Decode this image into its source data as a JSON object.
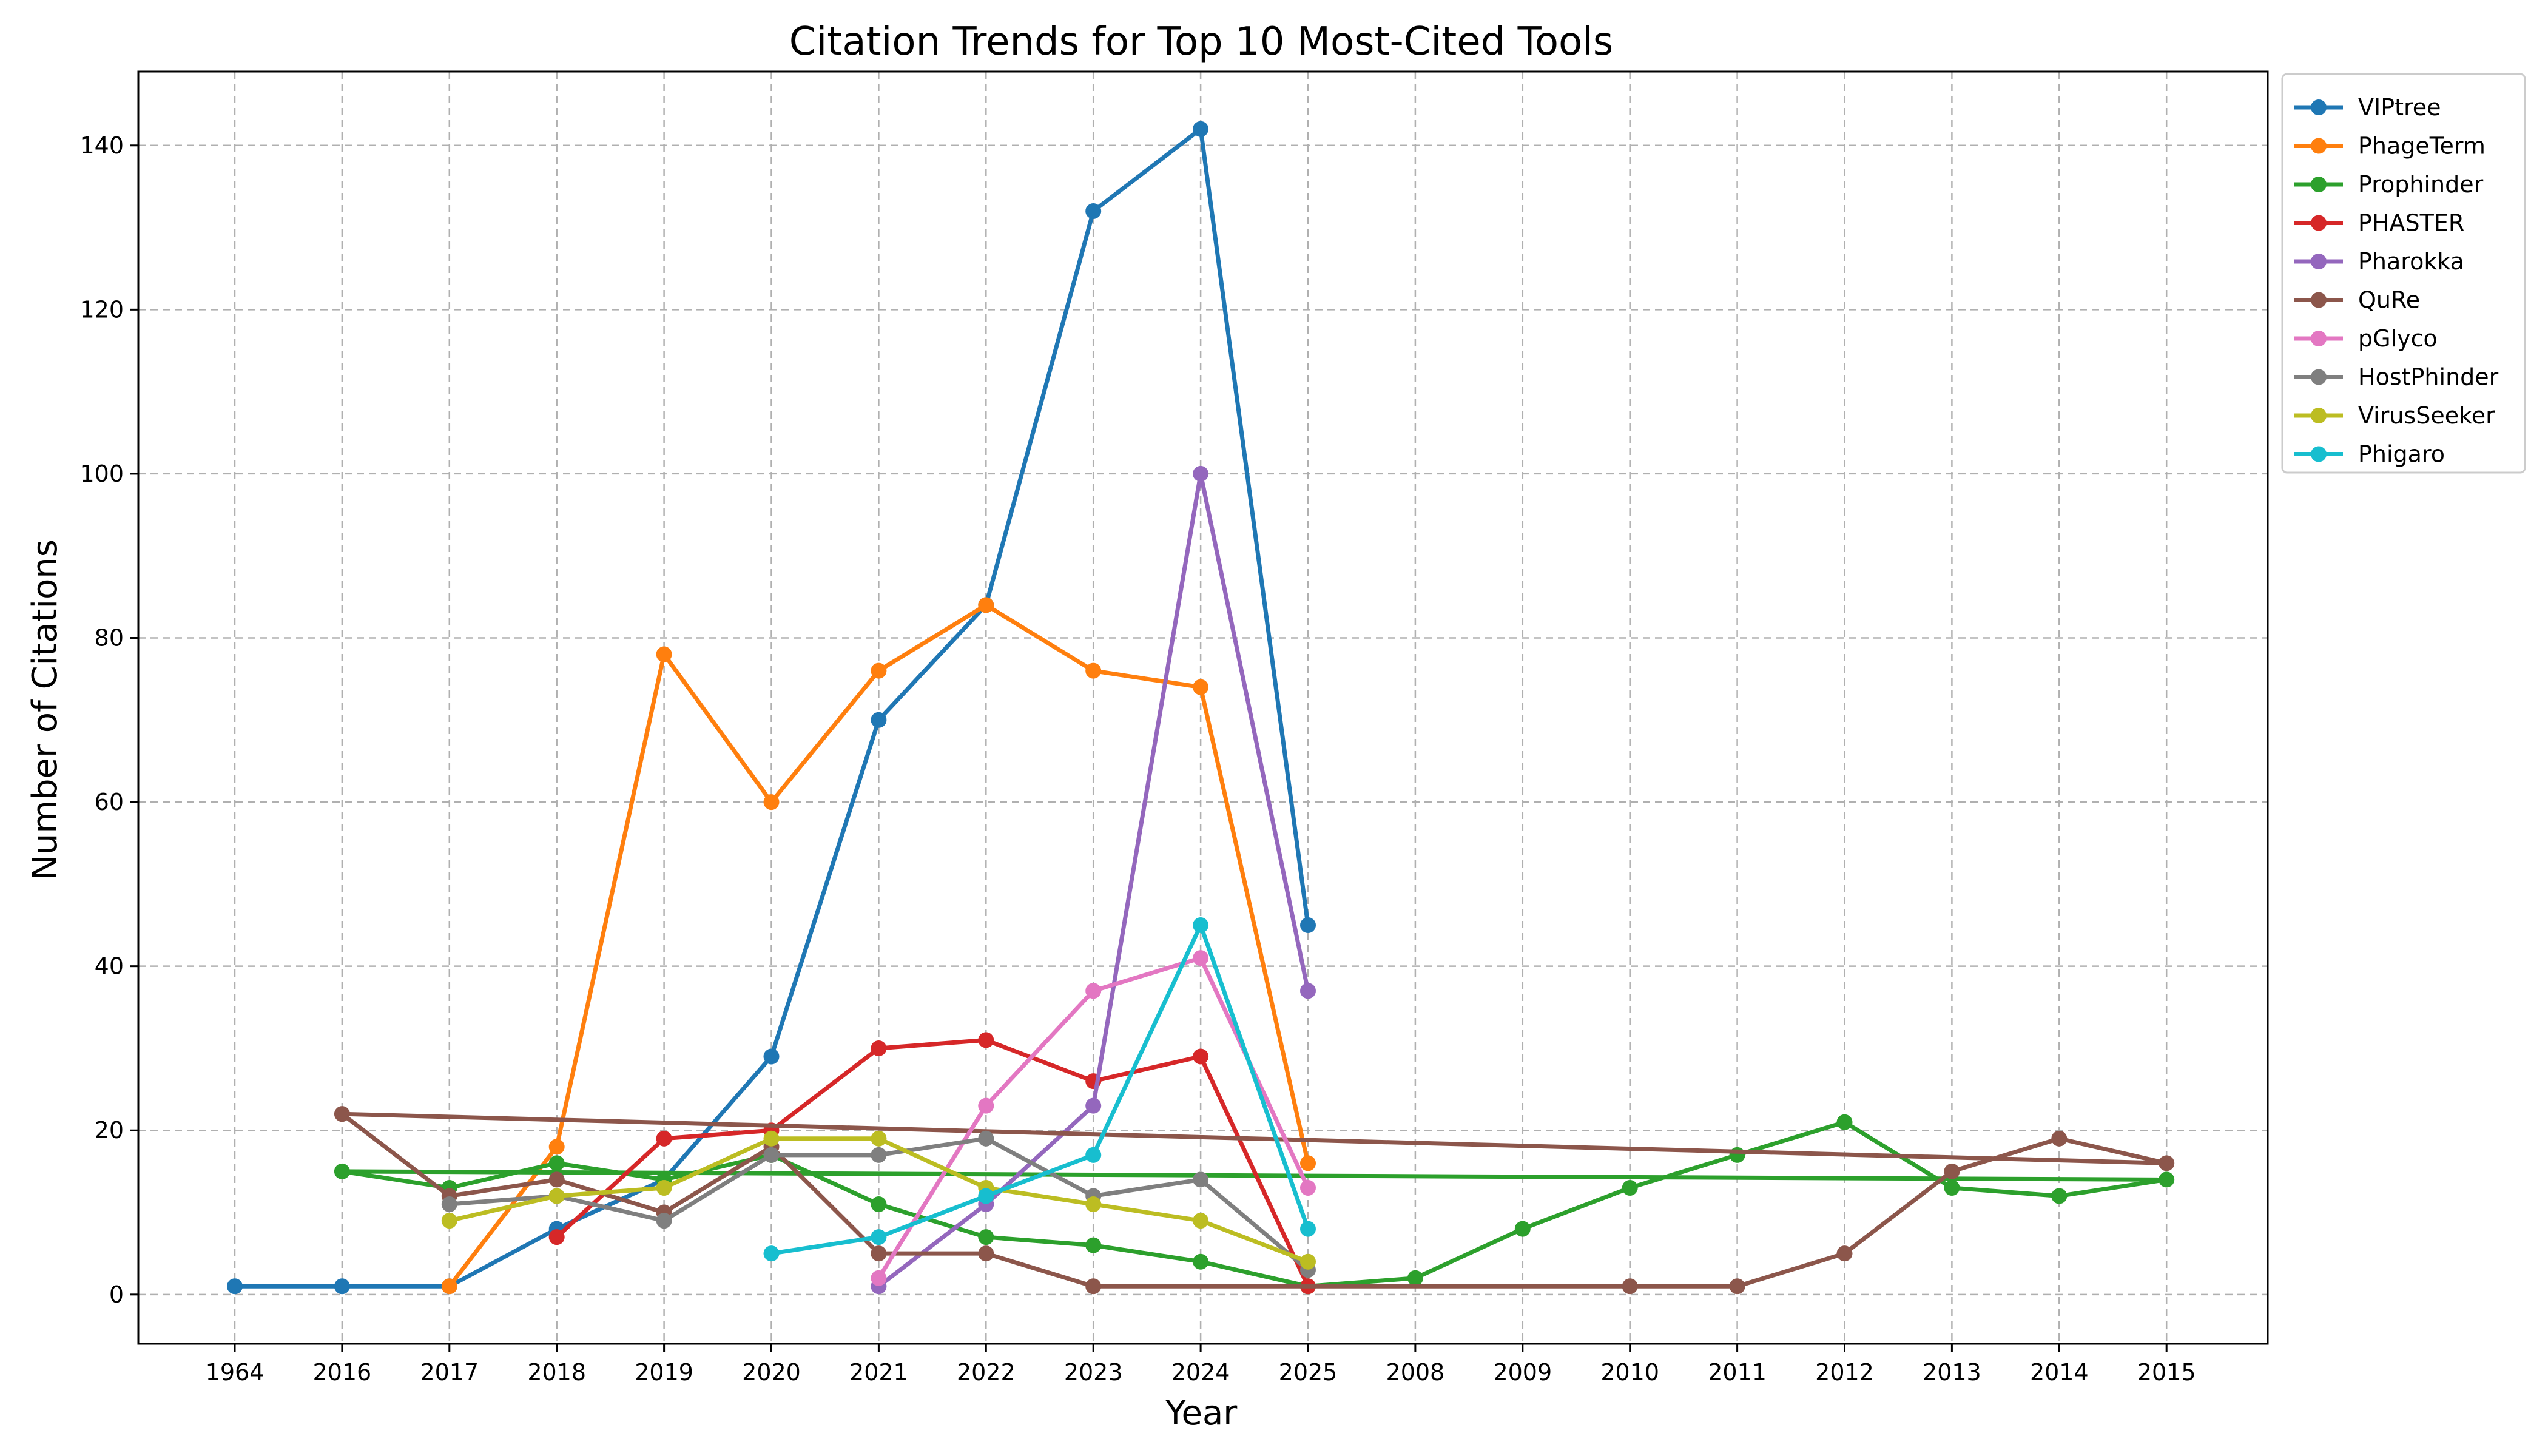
{
  "chart_data": {
    "type": "line",
    "title": "Citation Trends for Top 10 Most-Cited Tools",
    "xlabel": "Year",
    "ylabel": "Number of Citations",
    "categories": [
      "1964",
      "2016",
      "2017",
      "2018",
      "2019",
      "2020",
      "2021",
      "2022",
      "2023",
      "2024",
      "2025",
      "2008",
      "2009",
      "2010",
      "2011",
      "2012",
      "2013",
      "2014",
      "2015"
    ],
    "ylim": [
      -6,
      149
    ],
    "yticks": [
      0,
      20,
      40,
      60,
      80,
      100,
      120,
      140
    ],
    "grid": true,
    "legend_position": "outside-top-right",
    "series": [
      {
        "name": "VIPtree",
        "color": "#1f77b4",
        "points": [
          [
            "1964",
            1
          ],
          [
            "2016",
            1
          ],
          [
            "2017",
            1
          ],
          [
            "2018",
            8
          ],
          [
            "2019",
            14
          ],
          [
            "2020",
            29
          ],
          [
            "2021",
            70
          ],
          [
            "2022",
            84
          ],
          [
            "2023",
            132
          ],
          [
            "2024",
            142
          ],
          [
            "2025",
            45
          ]
        ]
      },
      {
        "name": "PhageTerm",
        "color": "#ff7f0e",
        "points": [
          [
            "2017",
            1
          ],
          [
            "2018",
            18
          ],
          [
            "2019",
            78
          ],
          [
            "2020",
            60
          ],
          [
            "2021",
            76
          ],
          [
            "2022",
            84
          ],
          [
            "2023",
            76
          ],
          [
            "2024",
            74
          ],
          [
            "2025",
            16
          ]
        ]
      },
      {
        "name": "Prophinder",
        "color": "#2ca02c",
        "points": [
          [
            "2016",
            15
          ],
          [
            "2017",
            13
          ],
          [
            "2018",
            16
          ],
          [
            "2019",
            14
          ],
          [
            "2020",
            17
          ],
          [
            "2021",
            11
          ],
          [
            "2022",
            7
          ],
          [
            "2023",
            6
          ],
          [
            "2024",
            4
          ],
          [
            "2025",
            1
          ],
          [
            "2008",
            2
          ],
          [
            "2009",
            8
          ],
          [
            "2010",
            13
          ],
          [
            "2011",
            17
          ],
          [
            "2012",
            21
          ],
          [
            "2013",
            13
          ],
          [
            "2014",
            12
          ],
          [
            "2015",
            14
          ]
        ],
        "extra_segments": [
          [
            [
              "2016",
              15
            ],
            [
              "2015",
              14
            ]
          ]
        ]
      },
      {
        "name": "PHASTER",
        "color": "#d62728",
        "points": [
          [
            "2018",
            7
          ],
          [
            "2019",
            19
          ],
          [
            "2020",
            20
          ],
          [
            "2021",
            30
          ],
          [
            "2022",
            31
          ],
          [
            "2023",
            26
          ],
          [
            "2024",
            29
          ],
          [
            "2025",
            1
          ]
        ]
      },
      {
        "name": "Pharokka",
        "color": "#9467bd",
        "points": [
          [
            "2021",
            1
          ],
          [
            "2022",
            11
          ],
          [
            "2023",
            23
          ],
          [
            "2024",
            100
          ],
          [
            "2025",
            37
          ]
        ]
      },
      {
        "name": "QuRe",
        "color": "#8c564b",
        "points": [
          [
            "2016",
            22
          ],
          [
            "2017",
            12
          ],
          [
            "2018",
            14
          ],
          [
            "2019",
            10
          ],
          [
            "2020",
            18
          ],
          [
            "2021",
            5
          ],
          [
            "2022",
            5
          ],
          [
            "2023",
            1
          ],
          [
            "2010",
            1
          ],
          [
            "2011",
            1
          ],
          [
            "2012",
            5
          ],
          [
            "2013",
            15
          ],
          [
            "2014",
            19
          ],
          [
            "2015",
            16
          ]
        ],
        "extra_segments": [
          [
            [
              "2016",
              22
            ],
            [
              "2015",
              16
            ]
          ]
        ]
      },
      {
        "name": "pGlyco",
        "color": "#e377c2",
        "points": [
          [
            "2021",
            2
          ],
          [
            "2022",
            23
          ],
          [
            "2023",
            37
          ],
          [
            "2024",
            41
          ],
          [
            "2025",
            13
          ]
        ]
      },
      {
        "name": "HostPhinder",
        "color": "#7f7f7f",
        "points": [
          [
            "2017",
            11
          ],
          [
            "2018",
            12
          ],
          [
            "2019",
            9
          ],
          [
            "2020",
            17
          ],
          [
            "2021",
            17
          ],
          [
            "2022",
            19
          ],
          [
            "2023",
            12
          ],
          [
            "2024",
            14
          ],
          [
            "2025",
            3
          ]
        ]
      },
      {
        "name": "VirusSeeker",
        "color": "#bcbd22",
        "points": [
          [
            "2017",
            9
          ],
          [
            "2018",
            12
          ],
          [
            "2019",
            13
          ],
          [
            "2020",
            19
          ],
          [
            "2021",
            19
          ],
          [
            "2022",
            13
          ],
          [
            "2023",
            11
          ],
          [
            "2024",
            9
          ],
          [
            "2025",
            4
          ]
        ]
      },
      {
        "name": "Phigaro",
        "color": "#17becf",
        "points": [
          [
            "2020",
            5
          ],
          [
            "2021",
            7
          ],
          [
            "2022",
            12
          ],
          [
            "2023",
            17
          ],
          [
            "2024",
            45
          ],
          [
            "2025",
            8
          ]
        ]
      }
    ]
  }
}
